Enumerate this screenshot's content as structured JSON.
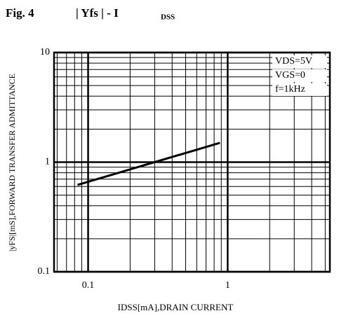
{
  "chart_data": {
    "type": "line",
    "title": "Fig. 4",
    "title_formula": "| Yfs |  -  I",
    "title_subscript": "DSS",
    "x_label": "IDSS[mA],DRAIN CURRENT",
    "y_label": "|yFS|[mS],FORWARD TRANSFER ADMITTANCE",
    "annotations": [
      "VDS=5V",
      "VGS=0",
      "f=1kHz"
    ],
    "log_x": true,
    "log_y": true,
    "grid": true,
    "xlim": [
      0.057,
      5.4
    ],
    "ylim": [
      0.1,
      10
    ],
    "xticks": [
      0.1,
      1
    ],
    "yticks": [
      0.1,
      1,
      10
    ],
    "x_minor": [
      0.06,
      0.07,
      0.08,
      0.09,
      0.2,
      0.3,
      0.4,
      0.5,
      0.6,
      0.7,
      0.8,
      0.9,
      2,
      3,
      4,
      5
    ],
    "y_minor": [
      0.2,
      0.3,
      0.4,
      0.5,
      0.6,
      0.7,
      0.8,
      0.9,
      2,
      3,
      4,
      5,
      6,
      7,
      8,
      9
    ],
    "series": [
      {
        "color": "#000000",
        "x": [
          0.084,
          0.88
        ],
        "values": [
          0.62,
          1.5
        ]
      }
    ]
  }
}
